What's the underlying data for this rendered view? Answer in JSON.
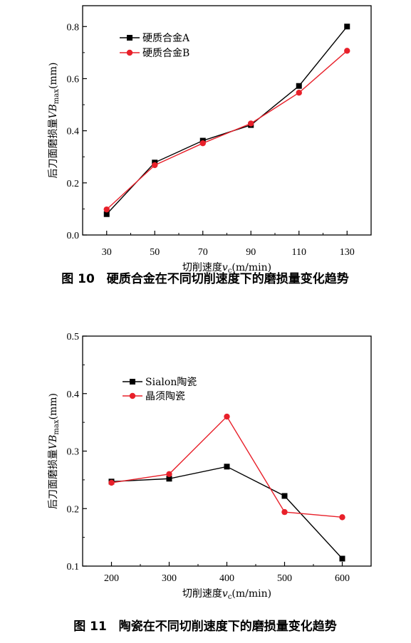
{
  "chart_data": [
    {
      "type": "line",
      "caption": "图 10　硬质合金在不同切削速度下的磨损量变化趋势",
      "xlabel_main": "切削速度",
      "xlabel_var": "v",
      "xlabel_sub": "c",
      "xlabel_unit": "(m/min)",
      "ylabel_main": "后刀面磨损量",
      "ylabel_var": "VB",
      "ylabel_sub": "max",
      "ylabel_unit": "(mm)",
      "x": [
        30,
        50,
        70,
        90,
        110,
        130
      ],
      "x_ticks": [
        "30",
        "50",
        "70",
        "90",
        "110",
        "130"
      ],
      "xlim": [
        20,
        140
      ],
      "ylim": [
        0.0,
        0.88
      ],
      "y_ticks": [
        "0.0",
        "0.2",
        "0.4",
        "0.6",
        "0.8"
      ],
      "y_tick_values": [
        0.0,
        0.2,
        0.4,
        0.6,
        0.8
      ],
      "legend_position": "top-left",
      "series": [
        {
          "name": "硬质合金A",
          "marker": "square",
          "color": "#000000",
          "values": [
            0.08,
            0.278,
            0.362,
            0.422,
            0.572,
            0.8
          ]
        },
        {
          "name": "硬质合金B",
          "marker": "circle",
          "color": "#e8202a",
          "values": [
            0.098,
            0.268,
            0.352,
            0.428,
            0.546,
            0.707
          ]
        }
      ]
    },
    {
      "type": "line",
      "caption": "图 11　陶瓷在不同切削速度下的磨损量变化趋势",
      "xlabel_main": "切削速度",
      "xlabel_var": "v",
      "xlabel_sub": "c",
      "xlabel_unit": "(m/min)",
      "ylabel_main": "后刀面磨损量",
      "ylabel_var": "VB",
      "ylabel_sub": "max",
      "ylabel_unit": "(mm)",
      "x": [
        200,
        300,
        400,
        500,
        600
      ],
      "x_ticks": [
        "200",
        "300",
        "400",
        "500",
        "600"
      ],
      "xlim": [
        150,
        650
      ],
      "ylim": [
        0.1,
        0.5
      ],
      "y_ticks": [
        "0.1",
        "0.2",
        "0.3",
        "0.4",
        "0.5"
      ],
      "y_tick_values": [
        0.1,
        0.2,
        0.3,
        0.4,
        0.5
      ],
      "legend_position": "top-left",
      "series": [
        {
          "name": "Sialon陶瓷",
          "marker": "square",
          "color": "#000000",
          "values": [
            0.247,
            0.252,
            0.273,
            0.222,
            0.113
          ]
        },
        {
          "name": "晶须陶瓷",
          "marker": "circle",
          "color": "#e8202a",
          "values": [
            0.245,
            0.26,
            0.36,
            0.194,
            0.185
          ]
        }
      ]
    }
  ]
}
